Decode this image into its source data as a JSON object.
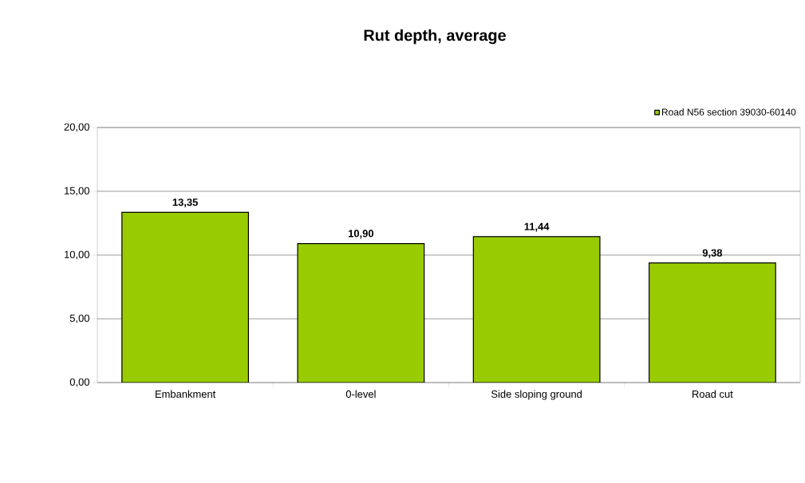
{
  "chart_data": {
    "type": "bar",
    "title": "Rut depth, average",
    "categories": [
      "Embankment",
      "0-level",
      "Side sloping ground",
      "Road cut"
    ],
    "series": [
      {
        "name": "Road N56 section  39030-60140",
        "color": "#99cc00",
        "values": [
          13.35,
          10.9,
          11.44,
          9.38
        ],
        "value_labels": [
          "13,35",
          "10,90",
          "11,44",
          "9,38"
        ]
      }
    ],
    "ylim": [
      0,
      20
    ],
    "yticks": [
      {
        "value": 0,
        "label": "0,00"
      },
      {
        "value": 5,
        "label": "5,00"
      },
      {
        "value": 10,
        "label": "10,00"
      },
      {
        "value": 15,
        "label": "15,00"
      },
      {
        "value": 20,
        "label": "20,00"
      }
    ],
    "grid": "y",
    "legend": "top right"
  }
}
